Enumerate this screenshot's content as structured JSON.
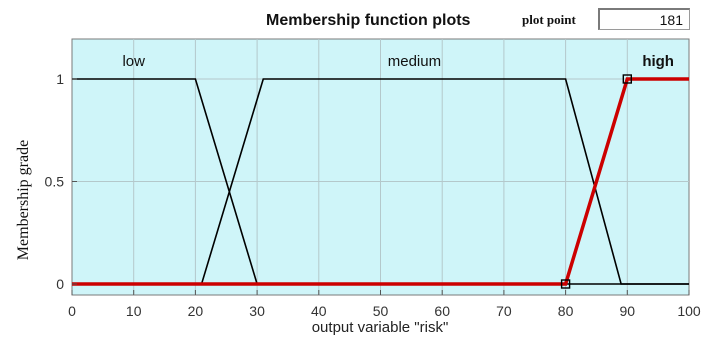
{
  "header": {
    "title": "Membership function plots",
    "plot_point_label": "plot point",
    "plot_point_value": "181"
  },
  "chart_data": {
    "type": "line",
    "title": "Membership function plots",
    "xlabel": "output variable \"risk\"",
    "ylabel": "Membership grade",
    "xlim": [
      0,
      100
    ],
    "ylim": [
      0,
      1
    ],
    "xticks": [
      0,
      10,
      20,
      30,
      40,
      50,
      60,
      70,
      80,
      90,
      100
    ],
    "yticks": [
      0,
      0.5,
      1
    ],
    "ytick_labels": [
      "0",
      "0.5",
      "1"
    ],
    "background_color": "#cff5f9",
    "series": [
      {
        "name": "low",
        "color": "#000000",
        "selected": false,
        "points": [
          [
            0,
            1
          ],
          [
            20,
            1
          ],
          [
            30,
            0
          ],
          [
            100,
            0
          ]
        ]
      },
      {
        "name": "medium",
        "color": "#000000",
        "selected": false,
        "points": [
          [
            0,
            0
          ],
          [
            21,
            0
          ],
          [
            31,
            1
          ],
          [
            80,
            1
          ],
          [
            89,
            0
          ],
          [
            100,
            0
          ]
        ]
      },
      {
        "name": "high",
        "color": "#cc0000",
        "selected": true,
        "points": [
          [
            0,
            0
          ],
          [
            80,
            0
          ],
          [
            90,
            1
          ],
          [
            100,
            1
          ]
        ]
      }
    ]
  }
}
